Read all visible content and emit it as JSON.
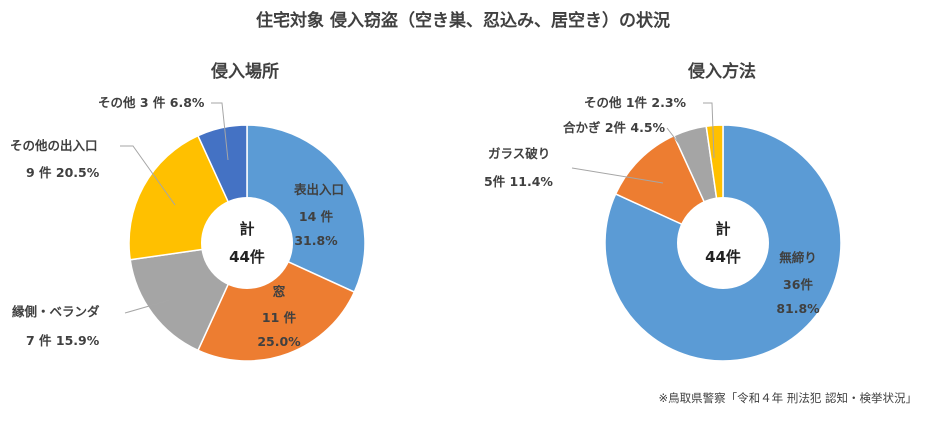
{
  "title": "住宅対象 侵入窃盗（空き巣、忍込み、居空き）の状況",
  "source": "※鳥取県警察「令和４年 刑法犯 認知・検挙状況」",
  "chart_data": [
    {
      "type": "pie",
      "subtype": "doughnut",
      "title": "侵入場所",
      "center_label": "計",
      "center_value": "44件",
      "slices": [
        {
          "name": "表出入口",
          "count": 14,
          "count_label": "14 件",
          "percent": 31.8,
          "percent_label": "31.8%",
          "color": "#5b9bd5"
        },
        {
          "name": "窓",
          "count": 11,
          "count_label": "11 件",
          "percent": 25.0,
          "percent_label": "25.0%",
          "color": "#ed7d31"
        },
        {
          "name": "縁側・ベランダ",
          "count": 7,
          "count_label": "7 件 15.9%",
          "percent": 15.9,
          "percent_label": "",
          "color": "#a5a5a5"
        },
        {
          "name": "その他の出入口",
          "count": 9,
          "count_label": "9 件 20.5%",
          "percent": 20.5,
          "percent_label": "",
          "color": "#ffc000"
        },
        {
          "name": "その他 3 件 6.8%",
          "count": 3,
          "count_label": "",
          "percent": 6.8,
          "percent_label": "",
          "color": "#4472c4"
        }
      ]
    },
    {
      "type": "pie",
      "subtype": "doughnut",
      "title": "侵入方法",
      "center_label": "計",
      "center_value": "44件",
      "slices": [
        {
          "name": "無締り",
          "count": 36,
          "count_label": "36件",
          "percent": 81.8,
          "percent_label": "81.8%",
          "color": "#5b9bd5"
        },
        {
          "name": "ガラス破り",
          "count": 5,
          "count_label": "5件 11.4%",
          "percent": 11.4,
          "percent_label": "",
          "color": "#ed7d31"
        },
        {
          "name": "合かぎ 2件 4.5%",
          "count": 2,
          "count_label": "",
          "percent": 4.5,
          "percent_label": "",
          "color": "#a5a5a5"
        },
        {
          "name": "その他 1件 2.3%",
          "count": 1,
          "count_label": "",
          "percent": 2.3,
          "percent_label": "",
          "color": "#ffc000"
        }
      ]
    }
  ]
}
